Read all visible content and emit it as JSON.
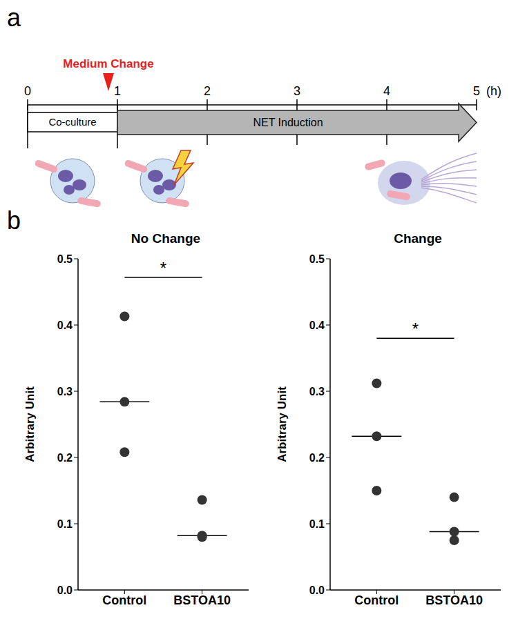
{
  "panel_labels": [
    "a",
    "b"
  ],
  "timeline": {
    "ticks": [
      0,
      1,
      2,
      3,
      4,
      5
    ],
    "unit": "(h)",
    "marker_label": "Medium Change",
    "marker_at": 0.9,
    "phases": [
      {
        "label": "Co-culture",
        "start": 0,
        "end": 1
      },
      {
        "label": "NET Induction",
        "start": 1,
        "end": 5
      }
    ]
  },
  "chart_data": [
    {
      "type": "scatter",
      "title": "No Change",
      "y_label": "Arbitrary Unit",
      "categories": [
        "Control",
        "BSTOA10"
      ],
      "values": [
        [
          0.413,
          0.284,
          0.208
        ],
        [
          0.136,
          0.082,
          0.08
        ]
      ],
      "medians": [
        0.284,
        0.082
      ],
      "color": "#333333",
      "marker": "circle",
      "ylim": [
        0,
        0.5
      ],
      "yticks": [
        {
          "value": 0,
          "label": "0.0"
        },
        0.1,
        0.2,
        0.3,
        0.4,
        0.5
      ],
      "annotations": [
        {
          "text": "*",
          "from": "Control",
          "to": "BSTOA10",
          "y": 0.472
        }
      ]
    },
    {
      "type": "scatter",
      "title": "Change",
      "y_label": "Arbitrary Unit",
      "categories": [
        "Control",
        "BSTOA10"
      ],
      "values": [
        [
          0.312,
          0.232,
          0.15
        ],
        [
          0.14,
          0.088,
          0.075
        ]
      ],
      "medians": [
        0.232,
        0.088
      ],
      "color": "#333333",
      "marker": "circle",
      "ylim": [
        0,
        0.5
      ],
      "yticks": [
        {
          "value": 0,
          "label": "0.0"
        },
        0.1,
        0.2,
        0.3,
        0.4,
        0.5
      ],
      "annotations": [
        {
          "text": "*",
          "from": "Control",
          "to": "BSTOA10",
          "y": 0.38
        }
      ]
    }
  ]
}
